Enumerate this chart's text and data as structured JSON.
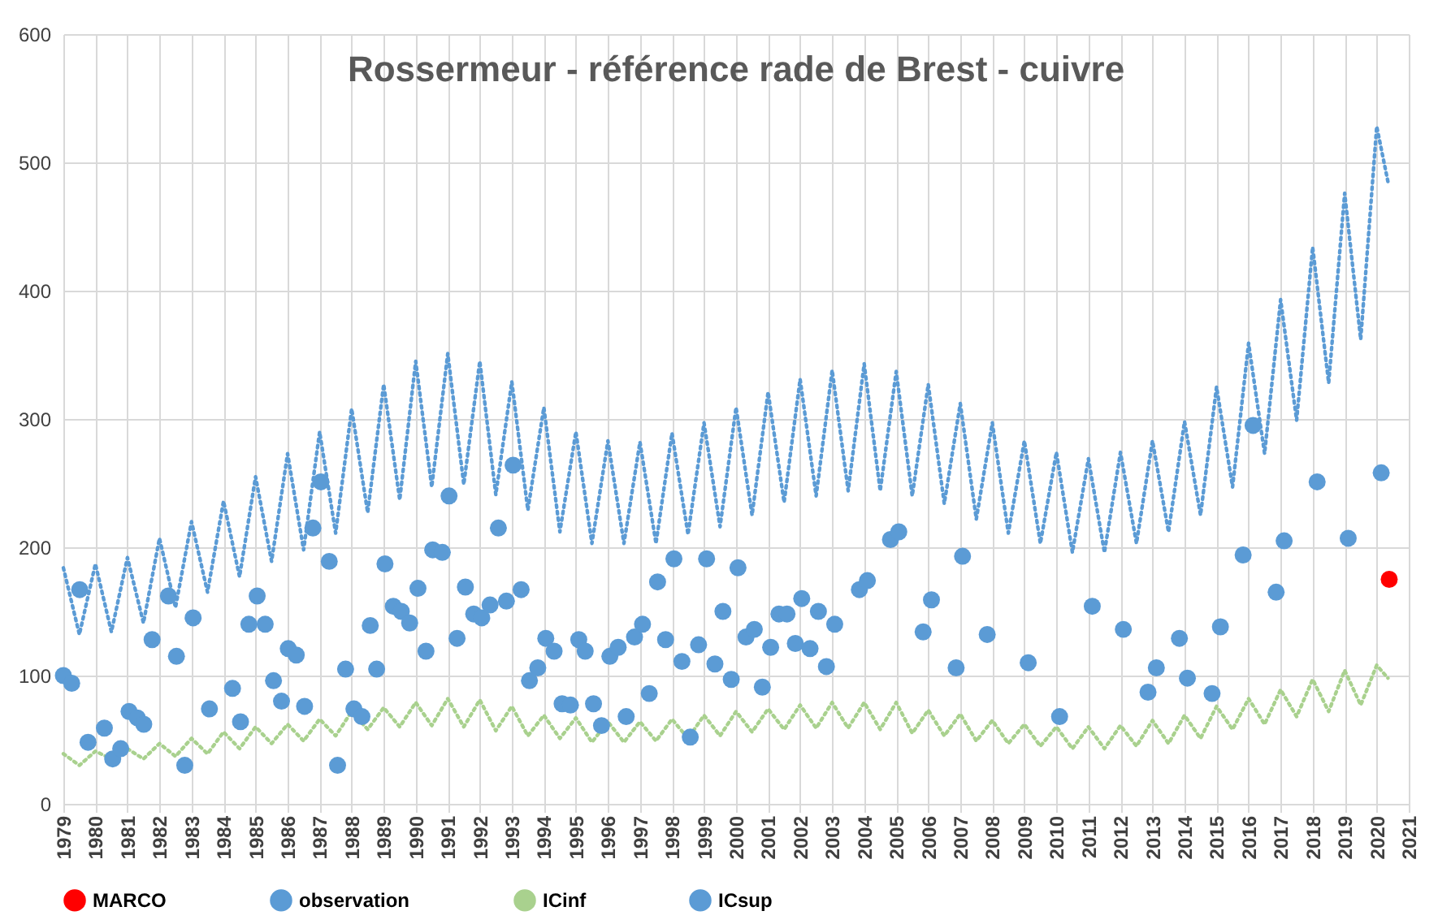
{
  "chart_data": {
    "type": "scatter",
    "title": "Rossermeur - référence rade de Brest - cuivre",
    "xlim": [
      1979,
      2021
    ],
    "xticks": [
      1979,
      1980,
      1981,
      1982,
      1983,
      1984,
      1985,
      1986,
      1987,
      1988,
      1989,
      1990,
      1991,
      1992,
      1993,
      1994,
      1995,
      1996,
      1997,
      1998,
      1999,
      2000,
      2001,
      2002,
      2003,
      2004,
      2005,
      2006,
      2007,
      2008,
      2009,
      2010,
      2011,
      2012,
      2013,
      2014,
      2015,
      2016,
      2017,
      2018,
      2019,
      2020,
      2021
    ],
    "ylim": [
      0,
      600
    ],
    "yticks": [
      0,
      100,
      200,
      300,
      400,
      500,
      600
    ],
    "grid": true,
    "legend": "bottom",
    "series": [
      {
        "name": "MARCO",
        "type": "scatter",
        "marker": "circle",
        "color": "#ff0000",
        "x": [
          2020.39
        ],
        "values": [
          175
        ]
      },
      {
        "name": "observation",
        "type": "scatter",
        "marker": "circle",
        "color": "#5b9bd5",
        "x": [
          1979.0,
          1979.26,
          1979.51,
          1979.77,
          1980.28,
          1980.54,
          1980.79,
          1981.05,
          1981.31,
          1981.51,
          1981.77,
          1982.28,
          1982.53,
          1982.79,
          1983.05,
          1983.56,
          1984.28,
          1984.53,
          1984.79,
          1985.05,
          1985.3,
          1985.56,
          1985.81,
          1986.02,
          1986.27,
          1986.53,
          1986.79,
          1987.04,
          1987.3,
          1987.56,
          1987.81,
          1988.07,
          1988.32,
          1988.58,
          1988.78,
          1989.04,
          1989.3,
          1989.55,
          1989.81,
          1990.07,
          1990.32,
          1990.53,
          1990.83,
          1991.04,
          1991.29,
          1991.55,
          1991.81,
          1992.06,
          1992.32,
          1992.58,
          1992.83,
          1993.04,
          1993.29,
          1993.55,
          1993.81,
          1994.06,
          1994.32,
          1994.57,
          1994.83,
          1995.09,
          1995.29,
          1995.55,
          1995.8,
          1996.06,
          1996.32,
          1996.57,
          1996.83,
          1997.08,
          1997.29,
          1997.55,
          1997.8,
          1998.06,
          1998.31,
          1998.57,
          1998.83,
          1999.08,
          1999.34,
          1999.59,
          1999.85,
          2000.06,
          2000.31,
          2000.57,
          2000.82,
          2001.08,
          2001.34,
          2001.59,
          2001.85,
          2002.05,
          2002.31,
          2002.57,
          2002.82,
          2003.08,
          2003.85,
          2004.1,
          2004.82,
          2005.08,
          2005.84,
          2006.1,
          2006.87,
          2007.07,
          2007.84,
          2009.12,
          2010.1,
          2011.12,
          2012.09,
          2012.86,
          2013.12,
          2013.84,
          2014.09,
          2014.86,
          2015.12,
          2015.83,
          2016.14,
          2016.86,
          2017.11,
          2018.14,
          2019.11,
          2020.14
        ],
        "values": [
          100,
          94,
          167,
          48,
          59,
          35,
          43,
          72,
          67,
          62,
          128,
          162,
          115,
          30,
          145,
          74,
          90,
          64,
          140,
          162,
          140,
          96,
          80,
          121,
          116,
          76,
          215,
          251,
          189,
          30,
          105,
          74,
          68,
          139,
          105,
          187,
          154,
          150,
          141,
          168,
          119,
          198,
          196,
          240,
          129,
          169,
          148,
          145,
          155,
          215,
          158,
          264,
          167,
          96,
          106,
          129,
          119,
          78,
          77,
          128,
          119,
          78,
          61,
          115,
          122,
          68,
          130,
          140,
          86,
          173,
          128,
          191,
          111,
          52,
          124,
          191,
          109,
          150,
          97,
          184,
          130,
          136,
          91,
          122,
          148,
          148,
          125,
          160,
          121,
          150,
          107,
          140,
          167,
          174,
          206,
          212,
          134,
          159,
          106,
          193,
          132,
          110,
          68,
          154,
          136,
          87,
          106,
          129,
          98,
          86,
          138,
          194,
          295,
          165,
          205,
          251,
          207,
          258
        ]
      },
      {
        "name": "ICinf",
        "type": "line",
        "line_style": "dotted",
        "marker": "none",
        "color": "#a9d18e",
        "x": [
          1979,
          1979.5,
          1980,
          1980.5,
          1981,
          1981.5,
          1982,
          1982.5,
          1983,
          1983.5,
          1984,
          1984.5,
          1985,
          1985.5,
          1986,
          1986.5,
          1987,
          1987.5,
          1988,
          1988.5,
          1989,
          1989.5,
          1990,
          1990.5,
          1991,
          1991.5,
          1992,
          1992.5,
          1993,
          1993.5,
          1994,
          1994.5,
          1995,
          1995.5,
          1996,
          1996.5,
          1997,
          1997.5,
          1998,
          1998.5,
          1999,
          1999.5,
          2000,
          2000.5,
          2001,
          2001.5,
          2002,
          2002.5,
          2003,
          2003.5,
          2004,
          2004.5,
          2005,
          2005.5,
          2006,
          2006.5,
          2007,
          2007.5,
          2008,
          2008.5,
          2009,
          2009.5,
          2010,
          2010.5,
          2011,
          2011.5,
          2012,
          2012.5,
          2013,
          2013.5,
          2014,
          2014.5,
          2015,
          2015.5,
          2016,
          2016.5,
          2017,
          2017.5,
          2018,
          2018.5,
          2019,
          2019.5,
          2020,
          2020.35
        ],
        "values": [
          39,
          30,
          41,
          35,
          43,
          35,
          47,
          37,
          51,
          39,
          56,
          43,
          60,
          47,
          62,
          49,
          66,
          53,
          72,
          58,
          75,
          60,
          79,
          61,
          82,
          60,
          81,
          57,
          76,
          53,
          69,
          51,
          67,
          48,
          64,
          48,
          64,
          49,
          66,
          51,
          69,
          53,
          72,
          56,
          74,
          58,
          77,
          59,
          79,
          59,
          79,
          58,
          79,
          55,
          73,
          53,
          70,
          49,
          65,
          47,
          62,
          45,
          60,
          43,
          60,
          43,
          61,
          45,
          65,
          47,
          69,
          51,
          76,
          58,
          82,
          62,
          89,
          68,
          97,
          72,
          104,
          77,
          108,
          98
        ]
      },
      {
        "name": "ICsup",
        "type": "line",
        "line_style": "dotted",
        "marker": "none",
        "color": "#5b9bd5",
        "x": [
          1979,
          1979.5,
          1980,
          1980.5,
          1981,
          1981.5,
          1982,
          1982.5,
          1983,
          1983.5,
          1984,
          1984.5,
          1985,
          1985.5,
          1986,
          1986.5,
          1987,
          1987.5,
          1988,
          1988.5,
          1989,
          1989.5,
          1990,
          1990.5,
          1991,
          1991.5,
          1992,
          1992.5,
          1993,
          1993.5,
          1994,
          1994.5,
          1995,
          1995.5,
          1996,
          1996.5,
          1997,
          1997.5,
          1998,
          1998.5,
          1999,
          1999.5,
          2000,
          2000.5,
          2001,
          2001.5,
          2002,
          2002.5,
          2003,
          2003.5,
          2004,
          2004.5,
          2005,
          2005.5,
          2006,
          2006.5,
          2007,
          2007.5,
          2008,
          2008.5,
          2009,
          2009.5,
          2010,
          2010.5,
          2011,
          2011.5,
          2012,
          2012.5,
          2013,
          2013.5,
          2014,
          2014.5,
          2015,
          2015.5,
          2016,
          2016.5,
          2017,
          2017.5,
          2018,
          2018.5,
          2019,
          2019.5,
          2020,
          2020.35
        ],
        "values": [
          184,
          132,
          187,
          134,
          192,
          141,
          207,
          153,
          220,
          165,
          236,
          177,
          255,
          189,
          273,
          198,
          290,
          211,
          308,
          227,
          327,
          237,
          345,
          247,
          351,
          249,
          345,
          241,
          329,
          229,
          309,
          212,
          290,
          203,
          283,
          203,
          282,
          203,
          289,
          210,
          297,
          216,
          309,
          225,
          321,
          235,
          331,
          240,
          338,
          244,
          343,
          244,
          337,
          240,
          327,
          234,
          312,
          222,
          297,
          211,
          283,
          203,
          274,
          196,
          269,
          196,
          274,
          203,
          283,
          212,
          298,
          225,
          325,
          247,
          359,
          273,
          393,
          299,
          434,
          328,
          476,
          362,
          528,
          485
        ]
      }
    ]
  }
}
